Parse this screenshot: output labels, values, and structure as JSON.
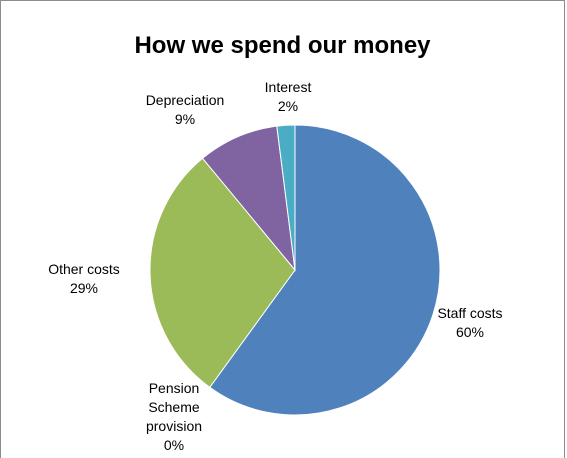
{
  "chart_data": {
    "type": "pie",
    "title": "How we spend our money",
    "slices": [
      {
        "label": "Staff costs",
        "value": 60,
        "display": "60%",
        "color": "#4f81bd"
      },
      {
        "label": "Pension Scheme provision",
        "value": 0,
        "display": "0%",
        "color": "#c0504d"
      },
      {
        "label": "Other costs",
        "value": 29,
        "display": "29%",
        "color": "#9bbb59"
      },
      {
        "label": "Depreciation",
        "value": 9,
        "display": "9%",
        "color": "#8064a2"
      },
      {
        "label": "Interest",
        "value": 2,
        "display": "2%",
        "color": "#4bacc6"
      }
    ],
    "legend": "none"
  }
}
